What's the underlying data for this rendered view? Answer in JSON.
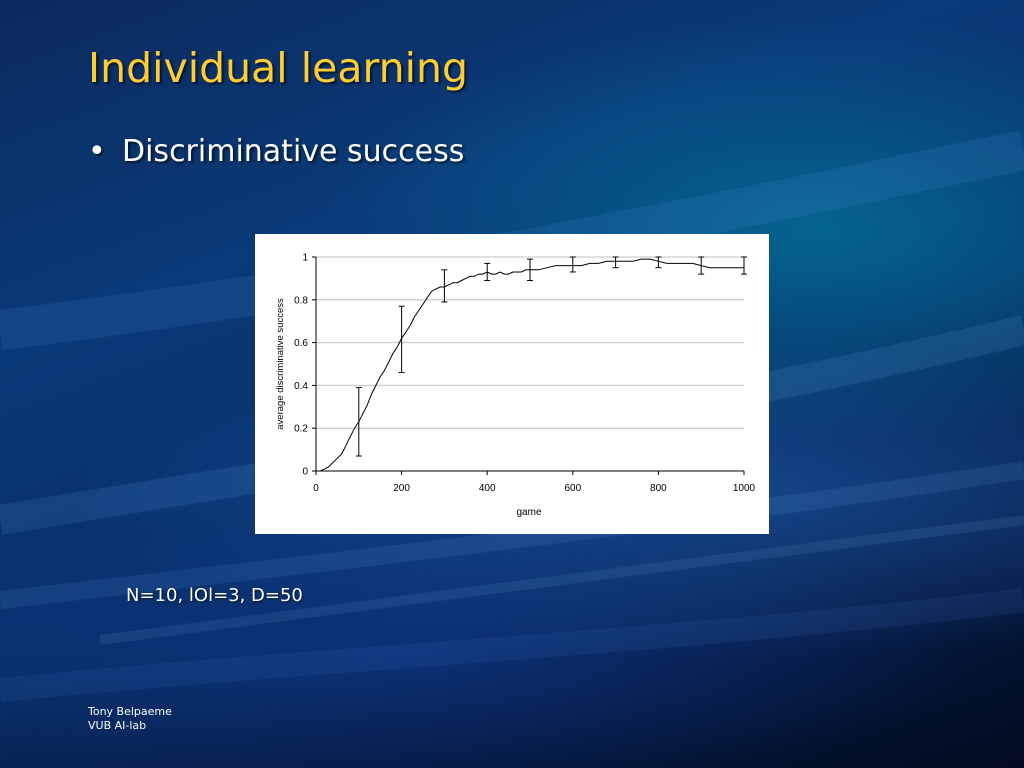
{
  "slide": {
    "title": "Individual learning",
    "bullet": "Discriminative success",
    "params": "N=10, lOl=3, D=50",
    "footer_line1": "Tony Belpaeme",
    "footer_line2": "VUB AI-lab",
    "bullet_glyph": "•"
  },
  "chart_data": {
    "type": "line",
    "xlabel": "game",
    "ylabel": "average discriminative success",
    "xlim": [
      0,
      1000
    ],
    "ylim": [
      0,
      1
    ],
    "xticks": [
      "0",
      "200",
      "400",
      "600",
      "800",
      "1000"
    ],
    "yticks": [
      "0",
      "0.2",
      "0.4",
      "0.6",
      "0.8",
      "1"
    ],
    "grid": "horizontal",
    "series": [
      {
        "x": [
          0,
          10,
          20,
          30,
          40,
          50,
          60,
          70,
          80,
          90,
          100,
          110,
          120,
          130,
          140,
          150,
          160,
          170,
          180,
          190,
          200,
          210,
          220,
          230,
          240,
          250,
          260,
          270,
          280,
          290,
          300,
          310,
          320,
          330,
          340,
          350,
          360,
          370,
          380,
          390,
          400,
          410,
          420,
          430,
          440,
          450,
          460,
          470,
          480,
          490,
          500,
          520,
          540,
          560,
          580,
          600,
          620,
          640,
          660,
          680,
          700,
          720,
          740,
          760,
          780,
          800,
          820,
          840,
          860,
          880,
          900,
          920,
          940,
          960,
          980,
          1000
        ],
        "y": [
          0,
          0.0,
          0.01,
          0.02,
          0.04,
          0.06,
          0.08,
          0.12,
          0.16,
          0.2,
          0.23,
          0.27,
          0.31,
          0.36,
          0.4,
          0.44,
          0.47,
          0.51,
          0.55,
          0.58,
          0.62,
          0.65,
          0.68,
          0.72,
          0.75,
          0.78,
          0.81,
          0.84,
          0.85,
          0.86,
          0.86,
          0.87,
          0.88,
          0.88,
          0.89,
          0.9,
          0.91,
          0.91,
          0.92,
          0.92,
          0.93,
          0.92,
          0.92,
          0.93,
          0.92,
          0.92,
          0.93,
          0.93,
          0.93,
          0.94,
          0.94,
          0.94,
          0.95,
          0.96,
          0.96,
          0.96,
          0.96,
          0.97,
          0.97,
          0.98,
          0.98,
          0.98,
          0.98,
          0.99,
          0.99,
          0.98,
          0.97,
          0.97,
          0.97,
          0.97,
          0.96,
          0.95,
          0.95,
          0.95,
          0.95,
          0.95
        ]
      }
    ],
    "error_bars": [
      {
        "x": 100,
        "low": 0.07,
        "high": 0.39
      },
      {
        "x": 200,
        "low": 0.46,
        "high": 0.77
      },
      {
        "x": 300,
        "low": 0.79,
        "high": 0.94
      },
      {
        "x": 400,
        "low": 0.89,
        "high": 0.97
      },
      {
        "x": 500,
        "low": 0.89,
        "high": 0.99
      },
      {
        "x": 600,
        "low": 0.93,
        "high": 1.0
      },
      {
        "x": 700,
        "low": 0.95,
        "high": 1.0
      },
      {
        "x": 800,
        "low": 0.95,
        "high": 1.0
      },
      {
        "x": 900,
        "low": 0.92,
        "high": 1.0
      },
      {
        "x": 1000,
        "low": 0.92,
        "high": 1.0
      }
    ]
  }
}
